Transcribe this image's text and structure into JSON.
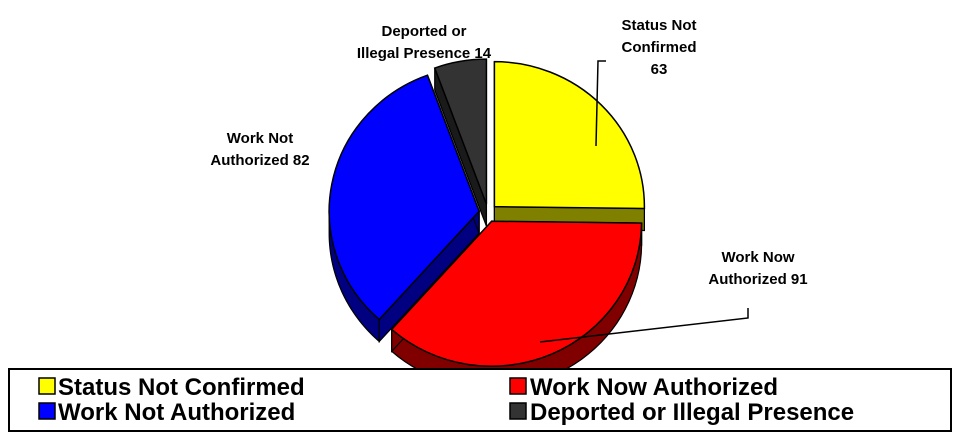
{
  "chart_data": {
    "type": "pie",
    "title": "",
    "three_d": true,
    "exploded": true,
    "slices": [
      {
        "name": "Status Not Confirmed",
        "value": 63,
        "color": "#FFFF00",
        "side_color": "#808000",
        "label_lines": [
          "Status Not",
          "Confirmed",
          "63"
        ]
      },
      {
        "name": "Work Now Authorized",
        "value": 91,
        "color": "#FF0000",
        "side_color": "#800000",
        "label_lines": [
          "Work Now",
          "Authorized 91"
        ]
      },
      {
        "name": "Work Not Authorized",
        "value": 82,
        "color": "#0000FF",
        "side_color": "#000080",
        "label_lines": [
          "Work Not",
          "Authorized 82"
        ]
      },
      {
        "name": "Deported or Illegal Presence",
        "value": 14,
        "color": "#333333",
        "side_color": "#1a1a1a",
        "label_lines": [
          "Deported or",
          "Illegal Presence 14"
        ]
      }
    ],
    "legend": {
      "placement": "bottom",
      "items": [
        {
          "label": "Status Not Confirmed",
          "color": "#FFFF00"
        },
        {
          "label": "Work Now Authorized",
          "color": "#FF0000"
        },
        {
          "label": "Work Not Authorized",
          "color": "#0000FF"
        },
        {
          "label": "Deported or Illegal Presence",
          "color": "#333333"
        }
      ]
    }
  }
}
